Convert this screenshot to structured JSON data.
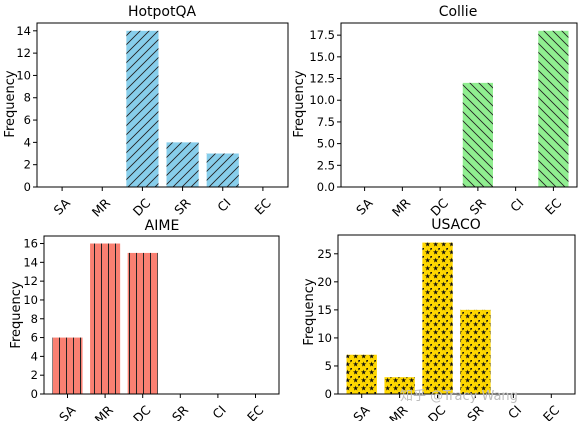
{
  "chart_data": [
    {
      "type": "bar",
      "title": "HotpotQA",
      "ylabel": "Frequency",
      "categories": [
        "SA",
        "MR",
        "DC",
        "SR",
        "CI",
        "EC"
      ],
      "values": [
        0,
        0,
        14,
        4,
        3,
        0
      ],
      "ylim": [
        0,
        14.7
      ],
      "yticks": [
        0,
        2,
        4,
        6,
        8,
        10,
        12,
        14
      ],
      "ytick_labels": [
        "0",
        "2",
        "4",
        "6",
        "8",
        "10",
        "12",
        "14"
      ],
      "color": "#87ceeb",
      "hatch": "diagonal"
    },
    {
      "type": "bar",
      "title": "Collie",
      "ylabel": "Frequency",
      "categories": [
        "SA",
        "MR",
        "DC",
        "SR",
        "CI",
        "EC"
      ],
      "values": [
        0,
        0,
        0,
        12,
        0,
        18
      ],
      "ylim": [
        0,
        18.9
      ],
      "yticks": [
        0,
        2.5,
        5,
        7.5,
        10,
        12.5,
        15,
        17.5
      ],
      "ytick_labels": [
        "0.0",
        "2.5",
        "5.0",
        "7.5",
        "10.0",
        "12.5",
        "15.0",
        "17.5"
      ],
      "color": "#90ee90",
      "hatch": "backslash"
    },
    {
      "type": "bar",
      "title": "AIME",
      "ylabel": "Frequency",
      "categories": [
        "SA",
        "MR",
        "DC",
        "SR",
        "CI",
        "EC"
      ],
      "values": [
        6,
        16,
        15,
        0,
        0,
        0
      ],
      "ylim": [
        0,
        16.8
      ],
      "yticks": [
        0,
        2,
        4,
        6,
        8,
        10,
        12,
        14,
        16
      ],
      "ytick_labels": [
        "0",
        "2",
        "4",
        "6",
        "8",
        "10",
        "12",
        "14",
        "16"
      ],
      "color": "#fa8072",
      "hatch": "vertical"
    },
    {
      "type": "bar",
      "title": "USACO",
      "ylabel": "Frequency",
      "categories": [
        "SA",
        "MR",
        "DC",
        "SR",
        "CI",
        "EC"
      ],
      "values": [
        7,
        3,
        27,
        15,
        0,
        0
      ],
      "ylim": [
        0,
        28.35
      ],
      "yticks": [
        0,
        5,
        10,
        15,
        20,
        25
      ],
      "ytick_labels": [
        "0",
        "5",
        "10",
        "15",
        "20",
        "25"
      ],
      "color": "#ffd700",
      "hatch": "stars"
    }
  ],
  "watermark": "知乎 @Tracy Wang"
}
